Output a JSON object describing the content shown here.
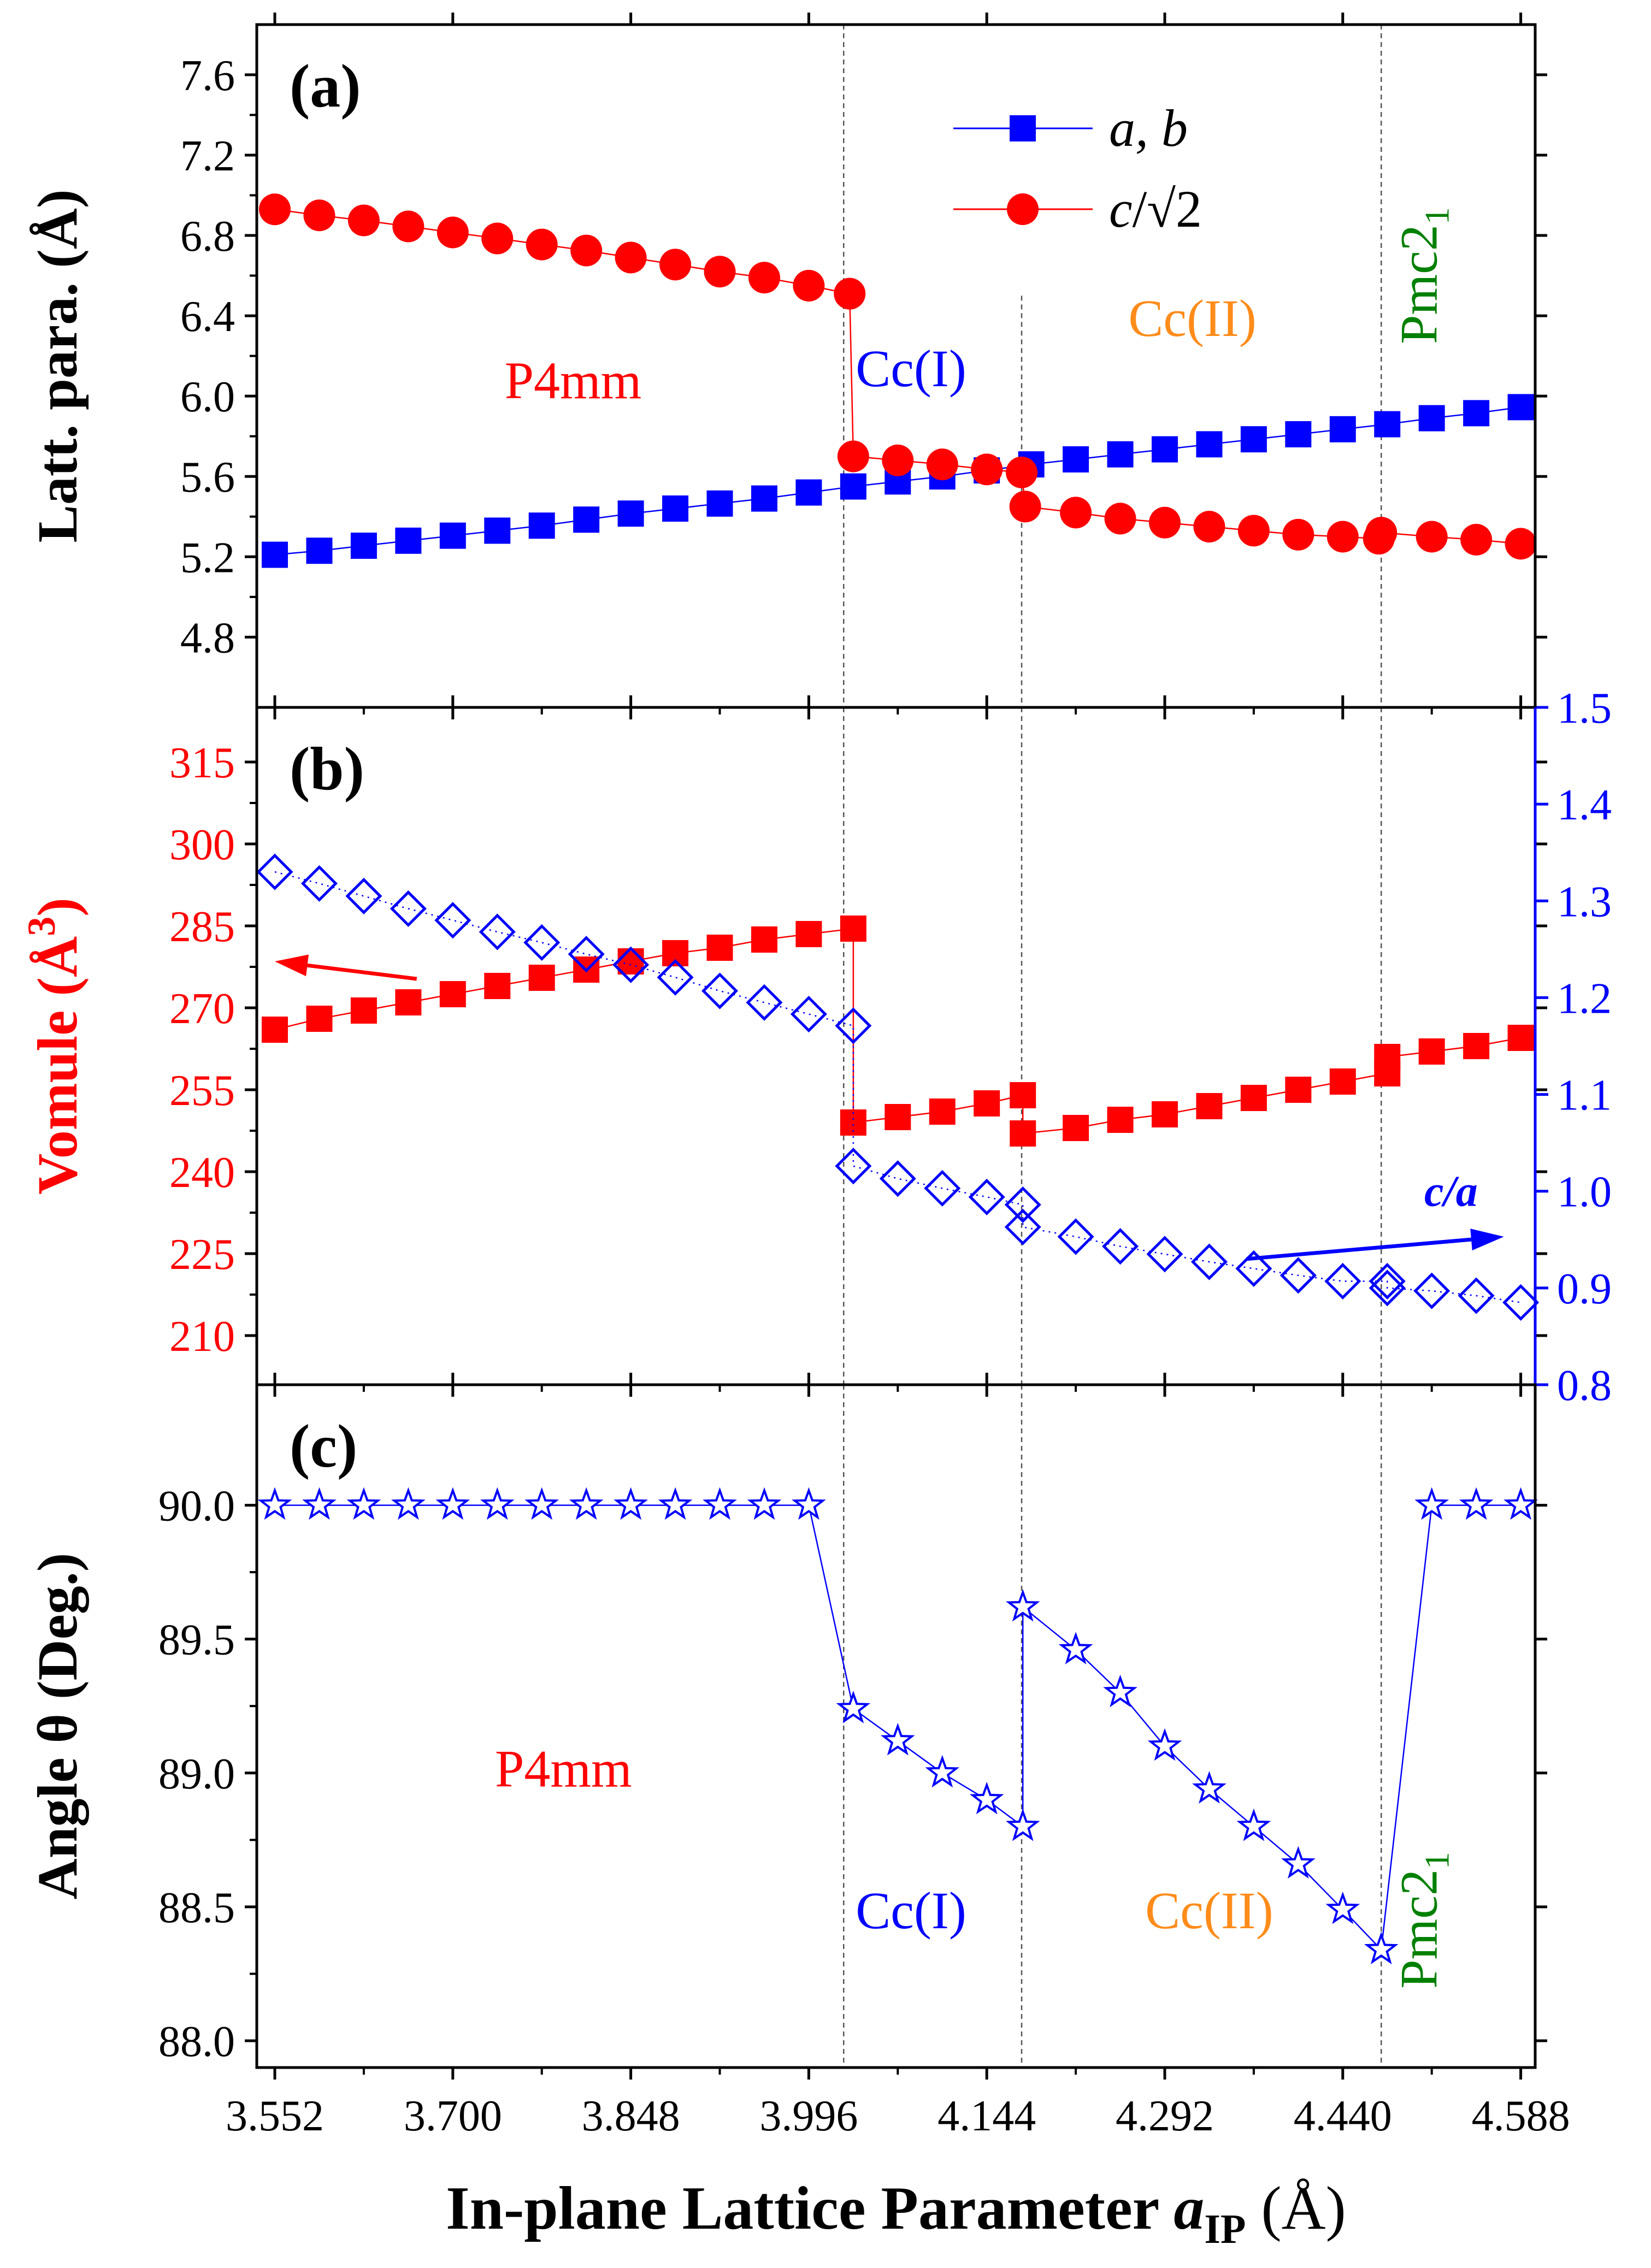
{
  "colors": {
    "red": "#ff0000",
    "blue": "#0000ff",
    "orange": "#ff8c1a",
    "green": "#008000",
    "black": "#000000"
  },
  "x_axis": {
    "label_main": "In-plane Lattice  Parameter ",
    "label_var": "a",
    "label_sub": "IP",
    "label_unit": " (Å)",
    "range": [
      3.537,
      4.6
    ],
    "ticks": [
      3.552,
      3.7,
      3.848,
      3.996,
      4.144,
      4.292,
      4.44,
      4.588
    ],
    "tick_labels": [
      "3.552",
      "3.700",
      "3.848",
      "3.996",
      "4.144",
      "4.292",
      "4.440",
      "4.588"
    ]
  },
  "phase_boundaries": [
    4.025,
    4.173,
    4.472
  ],
  "chart_data": [
    {
      "type": "line",
      "panel": "(a)",
      "ylabel": "Latt. para. (Å)",
      "ylim": [
        4.45,
        7.85
      ],
      "yticks": [
        4.8,
        5.2,
        5.6,
        6.0,
        6.4,
        6.8,
        7.2,
        7.6
      ],
      "ytick_labels": [
        "4.8",
        "5.2",
        "5.6",
        "6.0",
        "6.4",
        "6.8",
        "7.2",
        "7.6"
      ],
      "legend": {
        "position": "top-right",
        "entries": [
          {
            "name_parts": [
              "a, b"
            ],
            "marker": "square",
            "color": "blue"
          },
          {
            "name_parts": [
              "c",
              "/√2"
            ],
            "marker": "circle",
            "color": "red"
          }
        ]
      },
      "annotations": [
        {
          "text": "P4mm",
          "x": 3.8,
          "y": 5.99,
          "color": "red"
        },
        {
          "text": "Cc(I)",
          "x": 4.081,
          "y": 6.05,
          "color": "blue"
        },
        {
          "text": "Cc(II)",
          "x": 4.315,
          "y": 6.3,
          "color": "orange"
        },
        {
          "text": "Pmc2",
          "sub": "1",
          "x": 4.518,
          "y": 6.6,
          "color": "green",
          "rotate": true
        }
      ],
      "series": [
        {
          "name": "a, b",
          "color": "blue",
          "marker": "square",
          "x": [
            3.552,
            3.589,
            3.626,
            3.663,
            3.7,
            3.737,
            3.774,
            3.811,
            3.848,
            3.885,
            3.922,
            3.959,
            3.996,
            4.033,
            4.07,
            4.107,
            4.144,
            4.181,
            4.218,
            4.255,
            4.292,
            4.329,
            4.366,
            4.403,
            4.44,
            4.477,
            4.514,
            4.551,
            4.588
          ],
          "y": [
            5.21,
            5.23,
            5.255,
            5.28,
            5.305,
            5.33,
            5.355,
            5.385,
            5.415,
            5.44,
            5.465,
            5.49,
            5.52,
            5.55,
            5.575,
            5.6,
            5.63,
            5.66,
            5.685,
            5.71,
            5.735,
            5.76,
            5.785,
            5.81,
            5.835,
            5.86,
            5.89,
            5.915,
            5.945
          ]
        },
        {
          "name": "c/√2",
          "color": "red",
          "marker": "circle",
          "x": [
            3.552,
            3.589,
            3.626,
            3.663,
            3.7,
            3.737,
            3.774,
            3.811,
            3.848,
            3.885,
            3.922,
            3.959,
            3.996,
            4.03,
            4.033,
            4.07,
            4.107,
            4.144,
            4.173,
            4.176,
            4.218,
            4.255,
            4.292,
            4.329,
            4.366,
            4.403,
            4.44,
            4.47,
            4.472,
            4.514,
            4.551,
            4.588
          ],
          "y": [
            6.93,
            6.9,
            6.875,
            6.845,
            6.815,
            6.785,
            6.755,
            6.725,
            6.69,
            6.655,
            6.62,
            6.59,
            6.55,
            6.51,
            5.7,
            5.68,
            5.66,
            5.635,
            5.62,
            5.45,
            5.42,
            5.39,
            5.37,
            5.35,
            5.33,
            5.31,
            5.3,
            5.29,
            5.32,
            5.3,
            5.285,
            5.265
          ]
        }
      ]
    },
    {
      "type": "line",
      "panel": "(b)",
      "ylabel": "Vomule (Å",
      "ylabel_sup": "3",
      "ylabel_close": ")",
      "ylim": [
        201,
        325
      ],
      "yticks": [
        210,
        225,
        240,
        255,
        270,
        285,
        300,
        315
      ],
      "ytick_labels": [
        "210",
        "225",
        "240",
        "255",
        "270",
        "285",
        "300",
        "315"
      ],
      "y2label": "c/a",
      "y2lim": [
        0.8,
        1.5
      ],
      "y2ticks": [
        0.8,
        0.9,
        1.0,
        1.1,
        1.2,
        1.3,
        1.4,
        1.5
      ],
      "y2tick_labels": [
        "0.8",
        "0.9",
        "1.0",
        "1.1",
        "1.2",
        "1.3",
        "1.4",
        "1.5"
      ],
      "annotations": [
        {
          "text": "c/a",
          "x": 4.53,
          "y2": 0.985,
          "color": "blue"
        }
      ],
      "arrows": [
        {
          "axis": "left",
          "from": [
            3.67,
            275.3
          ],
          "to": [
            3.552,
            278.5
          ],
          "color": "red"
        },
        {
          "axis": "right",
          "from": [
            4.36,
            0.93
          ],
          "to": [
            4.574,
            0.953
          ],
          "color": "blue"
        }
      ],
      "series": [
        {
          "name": "Volume",
          "axis": "left",
          "color": "red",
          "marker": "square",
          "x": [
            3.552,
            3.589,
            3.626,
            3.663,
            3.7,
            3.737,
            3.774,
            3.811,
            3.848,
            3.885,
            3.922,
            3.959,
            3.996,
            4.033,
            4.033,
            4.07,
            4.107,
            4.144,
            4.174,
            4.174,
            4.218,
            4.255,
            4.292,
            4.329,
            4.366,
            4.403,
            4.44,
            4.477,
            4.477,
            4.514,
            4.551,
            4.588
          ],
          "y": [
            266,
            268,
            269.5,
            271,
            272.5,
            274,
            275.5,
            277,
            278.5,
            280,
            281,
            282.5,
            283.5,
            284.5,
            249,
            250,
            251,
            252.5,
            254,
            247,
            248,
            249.5,
            250.5,
            252,
            253.5,
            255,
            256.5,
            258,
            261,
            262,
            263,
            264.5
          ]
        },
        {
          "name": "c/a",
          "axis": "right",
          "color": "blue",
          "marker": "diamond",
          "x": [
            3.552,
            3.589,
            3.626,
            3.663,
            3.7,
            3.737,
            3.774,
            3.811,
            3.848,
            3.885,
            3.922,
            3.959,
            3.996,
            4.033,
            4.033,
            4.07,
            4.107,
            4.144,
            4.174,
            4.174,
            4.218,
            4.255,
            4.292,
            4.329,
            4.366,
            4.403,
            4.44,
            4.477,
            4.477,
            4.514,
            4.551,
            4.588
          ],
          "y": [
            1.33,
            1.318,
            1.305,
            1.292,
            1.28,
            1.268,
            1.257,
            1.245,
            1.234,
            1.221,
            1.207,
            1.195,
            1.183,
            1.171,
            1.026,
            1.013,
            1.003,
            0.994,
            0.986,
            0.963,
            0.953,
            0.943,
            0.935,
            0.927,
            0.92,
            0.913,
            0.907,
            0.907,
            0.9,
            0.897,
            0.892,
            0.885
          ]
        }
      ]
    },
    {
      "type": "line",
      "panel": "(c)",
      "ylabel": "Angle θ (Deg.)",
      "ylim": [
        87.9,
        90.45
      ],
      "yticks": [
        88.0,
        88.5,
        89.0,
        89.5,
        90.0
      ],
      "ytick_labels": [
        "88.0",
        "88.5",
        "89.0",
        "89.5",
        "90.0"
      ],
      "annotations": [
        {
          "text": "P4mm",
          "x": 3.792,
          "y": 88.95,
          "color": "red"
        },
        {
          "text": "Cc(I)",
          "x": 4.081,
          "y": 88.42,
          "color": "blue"
        },
        {
          "text": "Cc(II)",
          "x": 4.329,
          "y": 88.42,
          "color": "orange"
        },
        {
          "text": "Pmc2",
          "sub": "1",
          "x": 4.518,
          "y": 88.45,
          "color": "green",
          "rotate": true
        }
      ],
      "series": [
        {
          "name": "Angle",
          "color": "blue",
          "marker": "star",
          "x": [
            3.552,
            3.589,
            3.626,
            3.663,
            3.7,
            3.737,
            3.774,
            3.811,
            3.848,
            3.885,
            3.922,
            3.959,
            3.996,
            4.033,
            4.07,
            4.107,
            4.144,
            4.174,
            4.174,
            4.218,
            4.255,
            4.292,
            4.329,
            4.366,
            4.403,
            4.44,
            4.472,
            4.514,
            4.551,
            4.588
          ],
          "y": [
            90,
            90,
            90,
            90,
            90,
            90,
            90,
            90,
            90,
            90,
            90,
            90,
            90,
            89.24,
            89.12,
            89.0,
            88.9,
            88.8,
            89.62,
            89.46,
            89.3,
            89.1,
            88.94,
            88.8,
            88.66,
            88.49,
            88.34,
            90,
            90,
            90
          ]
        }
      ]
    }
  ]
}
